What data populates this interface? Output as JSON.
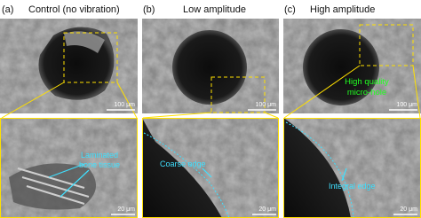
{
  "panels": [
    {
      "label": "(a)",
      "title": "Control (no vibration)",
      "scale_top": "100 μm",
      "scale_bottom": "20 μm",
      "bottom_annotation": [
        "Laminated",
        "bone tissue"
      ]
    },
    {
      "label": "(b)",
      "title": "Low amplitude",
      "scale_top": "100 μm",
      "scale_bottom": "20 μm",
      "bottom_annotation": [
        "Coarse edge"
      ]
    },
    {
      "label": "(c)",
      "title": "High amplitude",
      "scale_top": "100 μm",
      "scale_bottom": "20 μm",
      "bottom_annotation": [
        "Integral edge"
      ],
      "top_annotation": [
        "High quality",
        "micro-hole"
      ]
    }
  ]
}
